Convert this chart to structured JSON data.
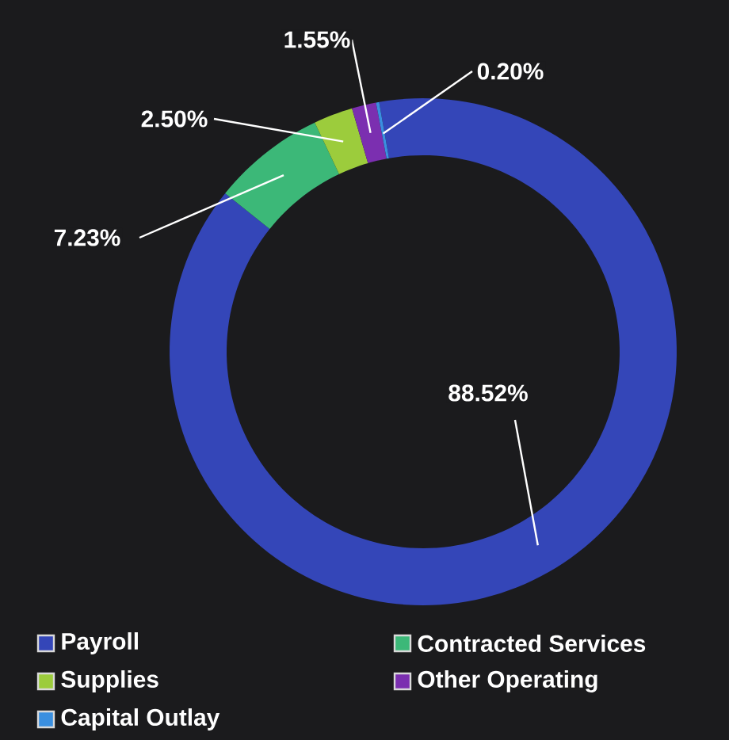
{
  "chart_data": {
    "type": "donut",
    "categories": [
      "Payroll",
      "Contracted Services",
      "Supplies",
      "Other Operating",
      "Capital Outlay"
    ],
    "values": [
      88.52,
      7.23,
      2.5,
      1.55,
      0.2
    ],
    "colors": [
      "#3446b8",
      "#3cb878",
      "#9ccc3c",
      "#7b2fb0",
      "#3a8fe0"
    ],
    "value_labels": [
      "88.52%",
      "7.23%",
      "2.50%",
      "1.55%",
      "0.20%"
    ],
    "legend": "bottom"
  }
}
